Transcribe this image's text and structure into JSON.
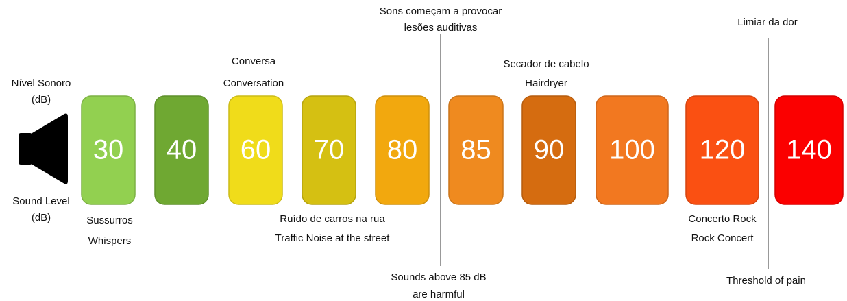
{
  "levels": [
    {
      "value": 30,
      "color": "#92d050"
    },
    {
      "value": 40,
      "color": "#6fa832"
    },
    {
      "value": 60,
      "color": "#f0dc1a"
    },
    {
      "value": 70,
      "color": "#d5c012"
    },
    {
      "value": 80,
      "color": "#f2a80e"
    },
    {
      "value": 85,
      "color": "#ef8a1f"
    },
    {
      "value": 90,
      "color": "#d56c10"
    },
    {
      "value": 100,
      "color": "#f27820"
    },
    {
      "value": 120,
      "color": "#fa5012"
    },
    {
      "value": 140,
      "color": "#fb0000"
    }
  ],
  "labels": [
    {
      "lines": [
        "Nível Sonoro",
        "(dB)"
      ]
    },
    {
      "lines": [
        "Sound Level",
        "(dB)"
      ]
    },
    {
      "lines": [
        "Conversa",
        "Conversation"
      ]
    },
    {
      "lines": [
        "Sons começam a provocar",
        "lesões auditivas"
      ]
    },
    {
      "lines": [
        "Secador de cabelo",
        "Hairdryer"
      ]
    },
    {
      "lines": [
        "Limiar da dor"
      ]
    },
    {
      "lines": [
        "Sussurros",
        "Whispers"
      ]
    },
    {
      "lines": [
        "Ruído de carros na rua",
        "Traffic Noise at the street"
      ]
    },
    {
      "lines": [
        "Concerto Rock",
        "Rock Concert"
      ]
    },
    {
      "lines": [
        "Sounds above 85 dB",
        "are harmful"
      ]
    },
    {
      "lines": [
        "Threshold of pain"
      ]
    }
  ]
}
